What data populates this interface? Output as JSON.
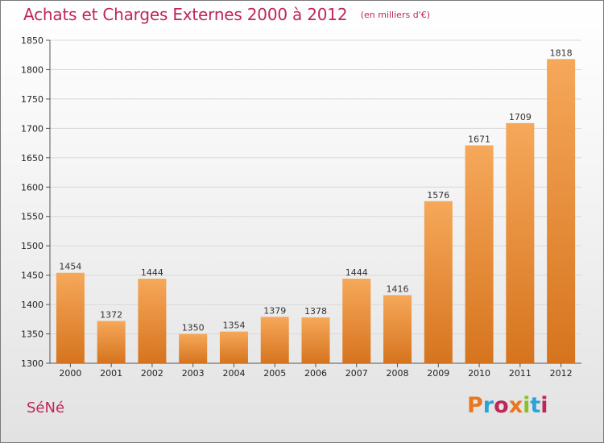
{
  "header": {
    "title": "Achats et Charges Externes 2000 à 2012",
    "unit": "(en milliers d'€)"
  },
  "footer": {
    "commune": "SéNé",
    "logo": "Proxiti",
    "logo_colors": [
      "#e8771f",
      "#2aa3d8",
      "#c0255a",
      "#e8771f",
      "#8cbf2a",
      "#2aa3d8",
      "#c0255a"
    ]
  },
  "colors": {
    "bar_light": "#f6a85a",
    "bar_dark": "#d6741e",
    "title": "#c0255a"
  },
  "chart_data": {
    "type": "bar",
    "categories": [
      "2000",
      "2001",
      "2002",
      "2003",
      "2004",
      "2005",
      "2006",
      "2007",
      "2008",
      "2009",
      "2010",
      "2011",
      "2012"
    ],
    "values": [
      1454,
      1372,
      1444,
      1350,
      1354,
      1379,
      1378,
      1444,
      1416,
      1576,
      1671,
      1709,
      1818
    ],
    "ylim": [
      1300,
      1850
    ],
    "yticks": [
      1300,
      1350,
      1400,
      1450,
      1500,
      1550,
      1600,
      1650,
      1700,
      1750,
      1800,
      1850
    ],
    "grid": true,
    "title": "Achats et Charges Externes 2000 à 2012",
    "xlabel": "",
    "ylabel": ""
  }
}
